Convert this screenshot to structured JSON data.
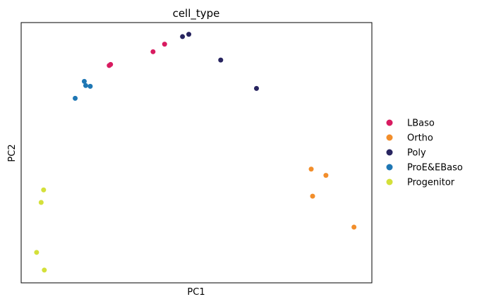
{
  "chart_data": {
    "type": "scatter",
    "title": "cell_type",
    "xlabel": "PC1",
    "ylabel": "PC2",
    "xlim": [
      0,
      100
    ],
    "ylim": [
      0,
      100
    ],
    "grid": false,
    "show_ticks": false,
    "legend_placement": "right",
    "series": [
      {
        "name": "LBaso",
        "color": "#d81b60",
        "points": [
          {
            "x": 25.1,
            "y": 83.5
          },
          {
            "x": 25.5,
            "y": 83.9
          },
          {
            "x": 37.6,
            "y": 88.8
          },
          {
            "x": 40.9,
            "y": 91.7
          }
        ]
      },
      {
        "name": "Ortho",
        "color": "#f28e2b",
        "points": [
          {
            "x": 82.7,
            "y": 43.7
          },
          {
            "x": 86.9,
            "y": 41.3
          },
          {
            "x": 83.1,
            "y": 33.3
          },
          {
            "x": 94.9,
            "y": 21.4
          }
        ]
      },
      {
        "name": "Poly",
        "color": "#282560",
        "points": [
          {
            "x": 46.0,
            "y": 94.6
          },
          {
            "x": 47.8,
            "y": 95.5
          },
          {
            "x": 56.9,
            "y": 85.6
          },
          {
            "x": 67.1,
            "y": 74.7
          }
        ]
      },
      {
        "name": "ProE&EBaso",
        "color": "#1f77b4",
        "points": [
          {
            "x": 18.0,
            "y": 77.4
          },
          {
            "x": 18.4,
            "y": 75.8
          },
          {
            "x": 19.7,
            "y": 75.5
          },
          {
            "x": 15.4,
            "y": 70.9
          }
        ]
      },
      {
        "name": "Progenitor",
        "color": "#d4e03a",
        "points": [
          {
            "x": 6.4,
            "y": 35.7
          },
          {
            "x": 5.7,
            "y": 30.9
          },
          {
            "x": 4.4,
            "y": 11.7
          },
          {
            "x": 6.6,
            "y": 4.9
          }
        ]
      }
    ]
  }
}
